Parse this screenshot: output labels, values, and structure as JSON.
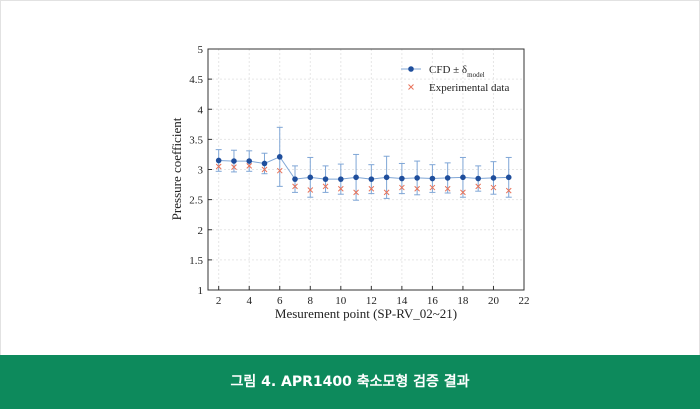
{
  "chart_data": {
    "type": "errorbar-line",
    "xlabel": "Mesurement point (SP-RV_02~21)",
    "ylabel": "Pressure coefficient",
    "xlim": [
      1.3,
      22
    ],
    "xticks": [
      2,
      4,
      6,
      8,
      10,
      12,
      14,
      16,
      18,
      20,
      22
    ],
    "ylim": [
      1,
      5
    ],
    "yticks": [
      1,
      1.5,
      2,
      2.5,
      3,
      3.5,
      4,
      4.5,
      5
    ],
    "grid": true,
    "legend": "upper right",
    "x": [
      2,
      3,
      4,
      5,
      6,
      7,
      8,
      9,
      10,
      11,
      12,
      13,
      14,
      15,
      16,
      17,
      18,
      19,
      20,
      21
    ],
    "series": [
      {
        "name": "CFD ± δ",
        "name_subscript": "model",
        "color": "#1f4e9c",
        "bar_color": "#7fa6d6",
        "values": [
          3.15,
          3.14,
          3.14,
          3.1,
          3.21,
          2.84,
          2.87,
          2.84,
          2.84,
          2.87,
          2.84,
          2.87,
          2.85,
          2.86,
          2.85,
          2.86,
          2.87,
          2.85,
          2.86,
          2.87
        ],
        "errors": [
          0.18,
          0.18,
          0.17,
          0.17,
          0.49,
          0.22,
          0.33,
          0.22,
          0.25,
          0.38,
          0.24,
          0.35,
          0.25,
          0.28,
          0.23,
          0.25,
          0.33,
          0.21,
          0.27,
          0.33
        ]
      },
      {
        "name": "Experimental data",
        "color": "#e8735a",
        "values": [
          3.05,
          3.04,
          3.06,
          3.0,
          2.98,
          2.72,
          2.66,
          2.72,
          2.68,
          2.62,
          2.68,
          2.62,
          2.7,
          2.68,
          2.7,
          2.68,
          2.62,
          2.72,
          2.7,
          2.65
        ]
      }
    ]
  },
  "caption": "그림 4. APR1400 축소모형 검증 결과"
}
